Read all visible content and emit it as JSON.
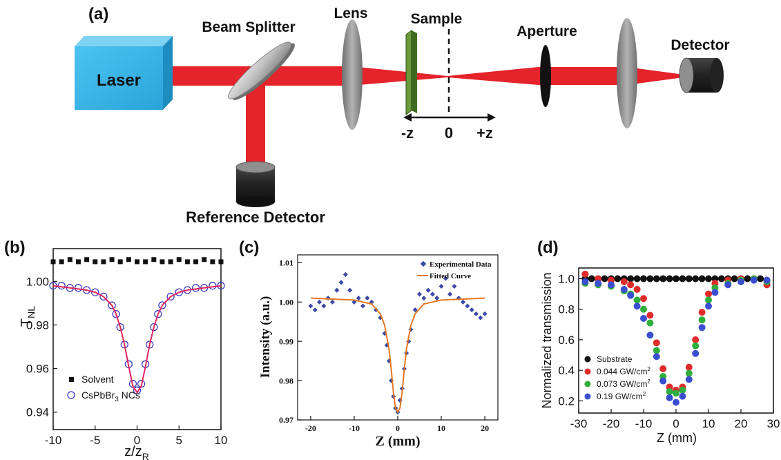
{
  "panel_a": {
    "label": "(a)",
    "laser": "Laser",
    "beam_splitter": "Beam Splitter",
    "lens": "Lens",
    "sample": "Sample",
    "aperture": "Aperture",
    "detector": "Detector",
    "reference_detector": "Reference Detector",
    "axis_minus": "-z",
    "axis_zero": "0",
    "axis_plus": "+z"
  },
  "colors": {
    "beam": "#e4232b",
    "laser_box": "#3bb4e6",
    "sample": "#6a9a3c",
    "lens": "#8a8a8a",
    "detector": "#2a2a2a"
  },
  "panels_label": {
    "b": "(b)",
    "c": "(c)",
    "d": "(d)"
  },
  "chart_data": [
    {
      "panel": "(b)",
      "type": "scatter",
      "xlabel": "z/z",
      "xlabel_sub": "R",
      "ylabel": "T",
      "ylabel_sub": "NL",
      "xlim": [
        -10,
        10
      ],
      "ylim": [
        0.932,
        1.015
      ],
      "xticks": [
        "-10",
        "-5",
        "0",
        "5",
        "10"
      ],
      "yticks": [
        "0.94",
        "0.96",
        "0.98",
        "1.00"
      ],
      "series": [
        {
          "name": "Solvent",
          "marker": "square",
          "color": "#111111",
          "x": [
            -10,
            -9,
            -8,
            -7,
            -6,
            -5,
            -4,
            -3,
            -2,
            -1,
            0,
            1,
            2,
            3,
            4,
            5,
            6,
            7,
            8,
            9,
            10
          ],
          "y": [
            1.009,
            1.009,
            1.01,
            1.009,
            1.01,
            1.009,
            1.009,
            1.01,
            1.009,
            1.01,
            1.009,
            1.009,
            1.01,
            1.009,
            1.009,
            1.01,
            1.009,
            1.009,
            1.01,
            1.009,
            1.009
          ]
        },
        {
          "name_text": "CsPbBr",
          "name_sub": "3",
          "name_tail": " NCs",
          "marker": "circle",
          "color": "#3b3bc4",
          "x": [
            -10,
            -9,
            -8,
            -7,
            -6,
            -5,
            -4,
            -3,
            -2.5,
            -2,
            -1.5,
            -1,
            -0.5,
            0,
            0.5,
            1,
            1.5,
            2,
            2.5,
            3,
            4,
            5,
            6,
            7,
            8,
            9,
            10
          ],
          "y": [
            0.998,
            0.998,
            0.997,
            0.997,
            0.996,
            0.995,
            0.993,
            0.989,
            0.985,
            0.979,
            0.971,
            0.962,
            0.953,
            0.95,
            0.953,
            0.962,
            0.971,
            0.979,
            0.985,
            0.989,
            0.993,
            0.995,
            0.996,
            0.997,
            0.997,
            0.998,
            0.998
          ]
        },
        {
          "name": "fit",
          "marker": "line",
          "color": "#e0245e",
          "x": [
            -10,
            -8,
            -6,
            -5,
            -4,
            -3,
            -2.5,
            -2,
            -1.5,
            -1,
            -0.5,
            0,
            0.5,
            1,
            1.5,
            2,
            2.5,
            3,
            4,
            5,
            6,
            8,
            10
          ],
          "y": [
            0.998,
            0.997,
            0.996,
            0.995,
            0.993,
            0.989,
            0.985,
            0.979,
            0.971,
            0.961,
            0.952,
            0.949,
            0.952,
            0.961,
            0.971,
            0.979,
            0.985,
            0.989,
            0.993,
            0.995,
            0.996,
            0.997,
            0.998
          ]
        }
      ]
    },
    {
      "panel": "(c)",
      "type": "scatter",
      "xlabel": "Z (mm)",
      "ylabel": "Intensity (a.u.)",
      "xlim": [
        -23,
        23
      ],
      "ylim": [
        0.97,
        1.012
      ],
      "xticks": [
        "-20",
        "-10",
        "0",
        "10",
        "20"
      ],
      "yticks": [
        "0.97",
        "0.98",
        "0.99",
        "1.00",
        "1.01"
      ],
      "series": [
        {
          "name": "Experimental Data",
          "marker": "diamond",
          "color": "#3a4aa8",
          "x": [
            -20,
            -19,
            -18,
            -17,
            -16,
            -15,
            -14,
            -13,
            -12,
            -11,
            -10,
            -9,
            -8,
            -7,
            -6,
            -5,
            -4,
            -3,
            -2.5,
            -2,
            -1.5,
            -1,
            -0.5,
            0,
            0.5,
            1,
            1.5,
            2,
            2.5,
            3,
            4,
            5,
            6,
            7,
            8,
            9,
            10,
            11,
            12,
            13,
            14,
            15,
            16,
            17,
            18,
            19,
            20
          ],
          "y": [
            0.999,
            0.998,
            1.0,
            0.999,
            1.001,
            1.0,
            1.003,
            1.005,
            1.007,
            1.003,
            1.0,
            1.001,
            0.999,
            1.001,
            1.0,
            0.998,
            0.996,
            0.992,
            0.989,
            0.985,
            0.98,
            0.976,
            0.973,
            0.972,
            0.975,
            0.978,
            0.983,
            0.987,
            0.99,
            0.993,
            0.998,
            1.002,
            1.001,
            1.003,
            1.002,
            1.001,
            1.004,
            1.006,
            1.002,
            1.004,
            1.001,
            1.0,
            0.999,
            0.998,
            0.997,
            0.996,
            0.997
          ]
        },
        {
          "name": "Fitted Curve",
          "marker": "line",
          "color": "#e87722",
          "x": [
            -20,
            -10,
            -6,
            -4,
            -3,
            -2,
            -1.5,
            -1,
            -0.5,
            0,
            0.5,
            1,
            1.5,
            2,
            3,
            4,
            6,
            10,
            20
          ],
          "y": [
            1.001,
            1.0005,
            0.9995,
            0.997,
            0.994,
            0.988,
            0.983,
            0.977,
            0.973,
            0.972,
            0.973,
            0.977,
            0.983,
            0.988,
            0.994,
            0.997,
            0.9995,
            1.0005,
            1.001
          ]
        }
      ]
    },
    {
      "panel": "(d)",
      "type": "scatter",
      "xlabel": "Z (mm)",
      "ylabel": "Normalized transmission",
      "xlim": [
        -30,
        30
      ],
      "ylim": [
        0.12,
        1.07
      ],
      "xticks": [
        "-30",
        "-20",
        "-10",
        "0",
        "10",
        "20",
        "30"
      ],
      "yticks": [
        "0.2",
        "0.4",
        "0.6",
        "0.8",
        "1.0"
      ],
      "series": [
        {
          "name": "Substrate",
          "marker": "circle",
          "color": "#111111",
          "x": [
            -28,
            -26,
            -24,
            -22,
            -20,
            -18,
            -16,
            -14,
            -12,
            -10,
            -8,
            -6,
            -4,
            -2,
            0,
            2,
            4,
            6,
            8,
            10,
            12,
            14,
            16,
            18,
            20,
            22,
            24,
            26,
            28
          ],
          "y": [
            1.0,
            1.0,
            1.0,
            1.0,
            1.0,
            1.0,
            1.0,
            1.0,
            1.0,
            1.0,
            1.0,
            1.0,
            1.0,
            1.0,
            1.0,
            1.0,
            1.0,
            1.0,
            1.0,
            1.0,
            1.0,
            1.0,
            1.0,
            1.0,
            1.0,
            1.0,
            1.0,
            1.0,
            0.99
          ]
        },
        {
          "name_text": "0.044 GW/cm",
          "name_sup": "2",
          "marker": "circle",
          "color": "#e02b2b",
          "x": [
            -28,
            -24,
            -20,
            -16,
            -14,
            -12,
            -10,
            -8,
            -6,
            -4,
            -2,
            0,
            2,
            4,
            6,
            8,
            10,
            12,
            16,
            20,
            24,
            28
          ],
          "y": [
            1.03,
            1.0,
            0.99,
            0.98,
            0.96,
            0.93,
            0.87,
            0.76,
            0.58,
            0.41,
            0.29,
            0.27,
            0.29,
            0.42,
            0.6,
            0.78,
            0.9,
            0.97,
            0.99,
            1.0,
            1.0,
            0.96
          ]
        },
        {
          "name_text": "0.073 GW/cm",
          "name_sup": "2",
          "marker": "circle",
          "color": "#2fae3c",
          "x": [
            -28,
            -24,
            -20,
            -16,
            -14,
            -12,
            -10,
            -8,
            -6,
            -4,
            -2,
            0,
            2,
            4,
            6,
            8,
            10,
            12,
            16,
            20,
            24,
            28
          ],
          "y": [
            0.97,
            0.96,
            0.95,
            0.92,
            0.9,
            0.86,
            0.8,
            0.71,
            0.53,
            0.36,
            0.26,
            0.25,
            0.27,
            0.38,
            0.56,
            0.73,
            0.86,
            0.94,
            0.97,
            0.99,
            1.0,
            0.98
          ]
        },
        {
          "name_text": "0.19 GW/cm",
          "name_sup": "2",
          "marker": "circle",
          "color": "#3a4fcf",
          "x": [
            -28,
            -24,
            -20,
            -16,
            -14,
            -12,
            -10,
            -8,
            -6,
            -4,
            -2,
            0,
            2,
            4,
            6,
            8,
            10,
            12,
            16,
            20,
            24,
            28
          ],
          "y": [
            0.98,
            0.97,
            0.96,
            0.93,
            0.89,
            0.82,
            0.74,
            0.63,
            0.49,
            0.33,
            0.22,
            0.19,
            0.23,
            0.34,
            0.51,
            0.68,
            0.82,
            0.91,
            0.96,
            0.98,
            0.99,
            0.99
          ]
        }
      ]
    }
  ]
}
